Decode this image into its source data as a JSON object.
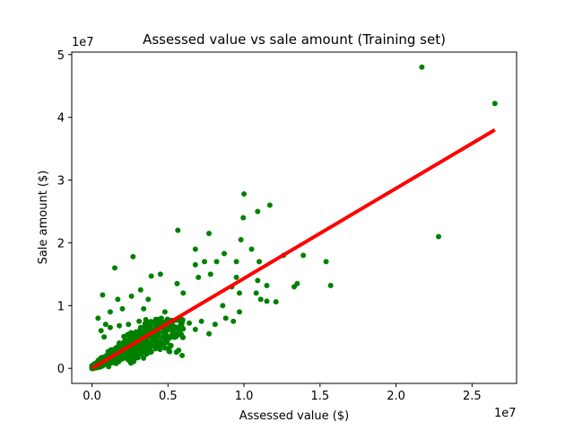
{
  "chart_data": {
    "type": "scatter",
    "title": "Assessed value vs sale amount (Training set)",
    "xlabel": "Assessed value ($)",
    "ylabel": "Sale amount ($)",
    "x_offset_label": "1e7",
    "y_offset_label": "1e7",
    "xlim": [
      -1330000,
      27930000
    ],
    "ylim": [
      -2400000,
      50400000
    ],
    "xticks": [
      0,
      5000000,
      10000000,
      15000000,
      20000000,
      25000000
    ],
    "xtick_labels": [
      "0.0",
      "0.5",
      "1.0",
      "1.5",
      "2.0",
      "2.5"
    ],
    "yticks": [
      0,
      10000000,
      20000000,
      30000000,
      40000000,
      50000000
    ],
    "ytick_labels": [
      "0",
      "1",
      "2",
      "3",
      "4",
      "5"
    ],
    "grid": false,
    "series": [
      {
        "kind": "points",
        "color": "#008000",
        "points": [
          [
            21700000,
            48000000
          ],
          [
            26500000,
            42200000
          ],
          [
            22800000,
            21000000
          ],
          [
            10000000,
            27800000
          ],
          [
            10900000,
            25000000
          ],
          [
            11700000,
            26000000
          ],
          [
            9950000,
            24000000
          ],
          [
            5650000,
            22000000
          ],
          [
            7700000,
            21500000
          ],
          [
            6800000,
            19000000
          ],
          [
            9800000,
            20500000
          ],
          [
            10500000,
            19000000
          ],
          [
            8700000,
            18300000
          ],
          [
            8200000,
            17000000
          ],
          [
            9500000,
            17000000
          ],
          [
            11000000,
            17000000
          ],
          [
            12600000,
            18000000
          ],
          [
            15400000,
            17000000
          ],
          [
            15700000,
            13200000
          ],
          [
            13300000,
            13000000
          ],
          [
            13500000,
            13500000
          ],
          [
            12100000,
            10600000
          ],
          [
            11500000,
            13200000
          ],
          [
            11100000,
            11000000
          ],
          [
            11500000,
            10700000
          ],
          [
            10800000,
            12000000
          ],
          [
            10900000,
            14000000
          ],
          [
            9200000,
            13000000
          ],
          [
            9500000,
            14500000
          ],
          [
            9700000,
            12000000
          ],
          [
            8600000,
            10000000
          ],
          [
            8800000,
            8000000
          ],
          [
            9700000,
            9000000
          ],
          [
            9300000,
            7500000
          ],
          [
            8100000,
            7000000
          ],
          [
            7700000,
            5500000
          ],
          [
            7200000,
            7500000
          ],
          [
            6800000,
            6200000
          ],
          [
            7800000,
            15000000
          ],
          [
            7000000,
            14500000
          ],
          [
            6800000,
            16500000
          ],
          [
            7400000,
            17000000
          ],
          [
            5600000,
            13500000
          ],
          [
            4500000,
            15000000
          ],
          [
            3900000,
            14700000
          ],
          [
            3200000,
            12500000
          ],
          [
            3700000,
            11000000
          ],
          [
            2600000,
            11500000
          ],
          [
            1700000,
            11000000
          ],
          [
            700000,
            11700000
          ],
          [
            1500000,
            16000000
          ],
          [
            2700000,
            17800000
          ],
          [
            400000,
            8000000
          ],
          [
            3400000,
            9500000
          ],
          [
            1200000,
            9000000
          ],
          [
            6000000,
            12000000
          ],
          [
            5800000,
            8000000
          ],
          [
            4800000,
            9000000
          ],
          [
            6000000,
            6300000
          ],
          [
            5000000,
            5000000
          ],
          [
            4200000,
            7800000
          ],
          [
            3100000,
            7500000
          ],
          [
            2400000,
            7000000
          ],
          [
            1800000,
            6800000
          ],
          [
            1200000,
            6500000
          ],
          [
            900000,
            7000000
          ],
          [
            4500000,
            3800000
          ],
          [
            3800000,
            3200000
          ],
          [
            3300000,
            3500000
          ],
          [
            5200000,
            6500000
          ],
          [
            6400000,
            7200000
          ],
          [
            2000000,
            9500000
          ],
          [
            800000,
            5000000
          ],
          [
            600000,
            6000000
          ],
          [
            13900000,
            18000000
          ]
        ],
        "dense_regions": [
          {
            "x": [
              0,
              6000000
            ],
            "y": [
              0,
              8000000
            ],
            "count": 900,
            "slope": 1.35
          }
        ]
      },
      {
        "kind": "regression_line",
        "color": "#ff0000",
        "x": [
          0,
          26500000
        ],
        "y": [
          0,
          38000000
        ]
      }
    ]
  }
}
